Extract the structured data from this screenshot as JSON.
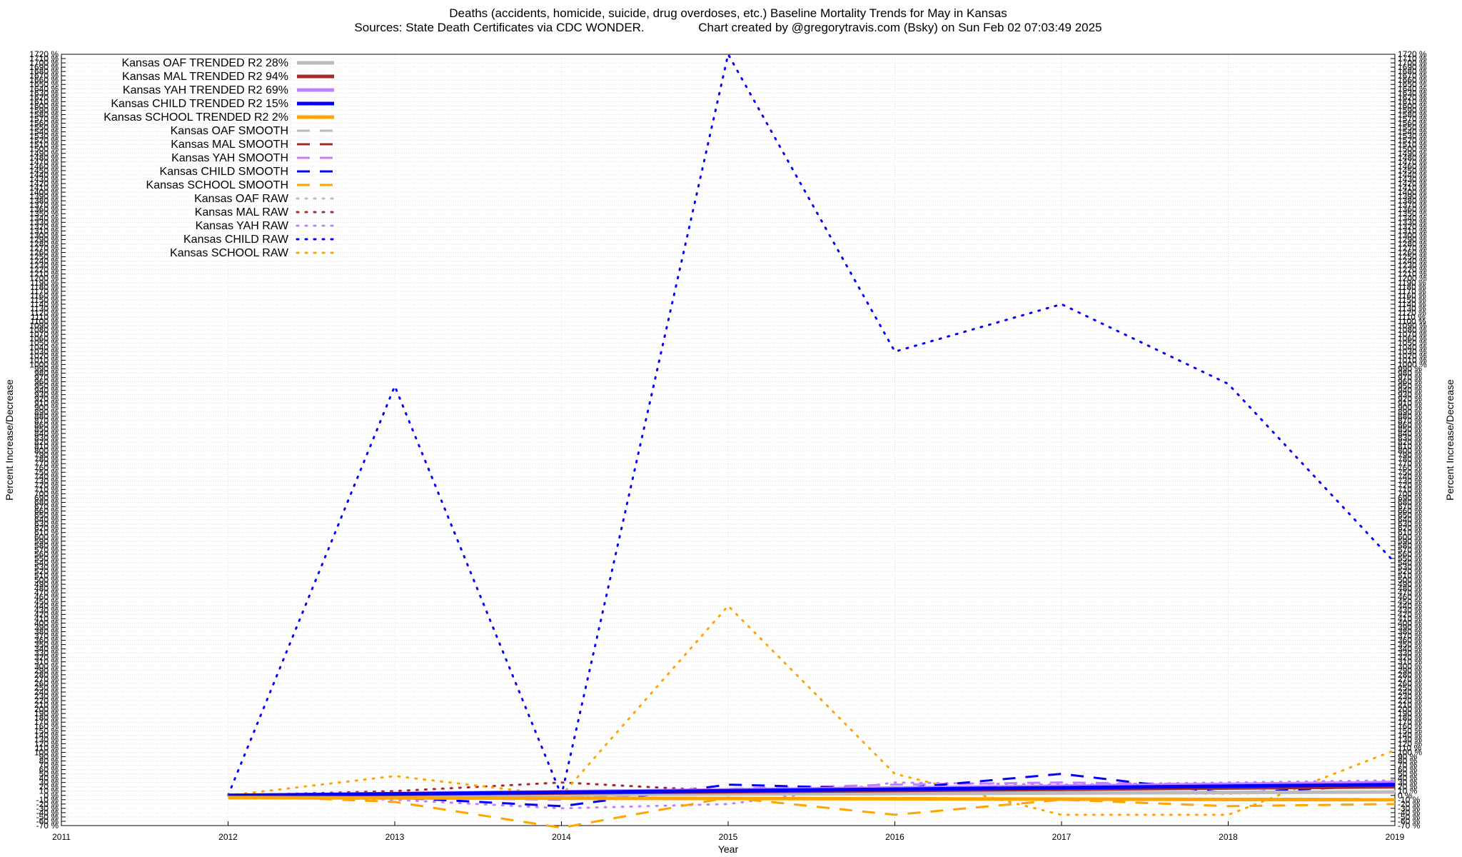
{
  "chart_data": {
    "type": "line",
    "title": "Deaths (accidents, homicide, suicide, drug overdoses, etc.)  Baseline Mortality Trends for May in Kansas",
    "subtitle": "Sources: State Death Certificates via CDC WONDER.                Chart created by @gregorytravis.com (Bsky) on Sun Feb 02 07:03:49 2025",
    "xlabel": "Year",
    "ylabel": "Percent Increase/Decrease",
    "ylabel_right": "Percent Increase/Decrease",
    "xlim": [
      2011,
      2019
    ],
    "ylim": [
      -70,
      1720
    ],
    "x_ticks": [
      "2011",
      "2012",
      "2013",
      "2014",
      "2015",
      "2016",
      "2017",
      "2018",
      "2019"
    ],
    "y_tick_step": 10,
    "y_tick_suffix": " %",
    "grid": true,
    "legend_position": "top-left",
    "series": [
      {
        "name": "Kansas OAF TRENDED R2  28%",
        "color": "#bbbbbb",
        "style": "solid",
        "x": [
          2012,
          2019
        ],
        "y": [
          0,
          8
        ]
      },
      {
        "name": "Kansas MAL TRENDED R2  94%",
        "color": "#a52a2a",
        "style": "solid",
        "x": [
          2012,
          2019
        ],
        "y": [
          0,
          20
        ]
      },
      {
        "name": "Kansas YAH TRENDED R2  69%",
        "color": "#c080ff",
        "style": "solid",
        "x": [
          2012,
          2019
        ],
        "y": [
          0,
          30
        ]
      },
      {
        "name": "Kansas CHILD TRENDED R2  15%",
        "color": "#0000ff",
        "style": "solid",
        "x": [
          2012,
          2019
        ],
        "y": [
          0,
          25
        ]
      },
      {
        "name": "Kansas SCHOOL TRENDED R2   2%",
        "color": "#ffa500",
        "style": "solid",
        "x": [
          2012,
          2019
        ],
        "y": [
          -5,
          -10
        ]
      },
      {
        "name": "Kansas OAF SMOOTH",
        "color": "#bbbbbb",
        "style": "dashed",
        "x": [
          2012,
          2013,
          2014,
          2015,
          2016,
          2017,
          2018,
          2019
        ],
        "y": [
          0,
          2,
          -3,
          8,
          10,
          8,
          5,
          8
        ]
      },
      {
        "name": "Kansas MAL SMOOTH",
        "color": "#a52a2a",
        "style": "dashed",
        "x": [
          2012,
          2013,
          2014,
          2015,
          2016,
          2017,
          2018,
          2019
        ],
        "y": [
          0,
          5,
          10,
          12,
          10,
          15,
          18,
          25
        ]
      },
      {
        "name": "Kansas YAH SMOOTH",
        "color": "#c080ff",
        "style": "dashed",
        "x": [
          2012,
          2013,
          2014,
          2015,
          2016,
          2017,
          2018,
          2019
        ],
        "y": [
          0,
          -5,
          -10,
          15,
          25,
          30,
          25,
          30
        ]
      },
      {
        "name": "Kansas CHILD SMOOTH",
        "color": "#0000ff",
        "style": "dashed",
        "x": [
          2012,
          2013,
          2014,
          2015,
          2016,
          2017,
          2018,
          2019
        ],
        "y": [
          0,
          -5,
          -25,
          25,
          15,
          50,
          5,
          25
        ]
      },
      {
        "name": "Kansas SCHOOL SMOOTH",
        "color": "#ffa500",
        "style": "dashed",
        "x": [
          2012,
          2013,
          2014,
          2015,
          2016,
          2017,
          2018,
          2019
        ],
        "y": [
          0,
          -15,
          -75,
          -5,
          -45,
          -10,
          -25,
          -20
        ]
      },
      {
        "name": "Kansas OAF RAW",
        "color": "#bbbbbb",
        "style": "dotted",
        "x": [
          2012,
          2013,
          2014,
          2015,
          2016,
          2017,
          2018,
          2019
        ],
        "y": [
          0,
          3,
          -5,
          12,
          8,
          6,
          4,
          10
        ]
      },
      {
        "name": "Kansas MAL RAW",
        "color": "#a52a2a",
        "style": "dotted",
        "x": [
          2012,
          2013,
          2014,
          2015,
          2016,
          2017,
          2018,
          2019
        ],
        "y": [
          0,
          10,
          30,
          10,
          5,
          15,
          20,
          25
        ]
      },
      {
        "name": "Kansas YAH RAW",
        "color": "#c080ff",
        "style": "dotted",
        "x": [
          2012,
          2013,
          2014,
          2015,
          2016,
          2017,
          2018,
          2019
        ],
        "y": [
          0,
          -10,
          -30,
          -20,
          30,
          25,
          30,
          35
        ]
      },
      {
        "name": "Kansas CHILD RAW",
        "color": "#0000ff",
        "style": "dotted",
        "x": [
          2012,
          2013,
          2014,
          2015,
          2016,
          2017,
          2018,
          2019
        ],
        "y": [
          0,
          950,
          0,
          1720,
          1030,
          1140,
          955,
          540
        ]
      },
      {
        "name": "Kansas SCHOOL RAW",
        "color": "#ffa500",
        "style": "dotted",
        "x": [
          2012,
          2013,
          2014,
          2015,
          2016,
          2017,
          2018,
          2019
        ],
        "y": [
          0,
          45,
          0,
          440,
          50,
          -45,
          -45,
          105
        ]
      }
    ]
  }
}
